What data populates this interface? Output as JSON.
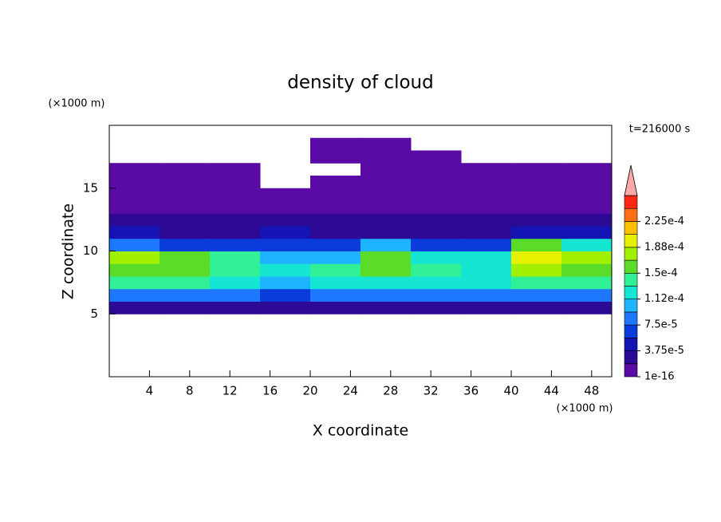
{
  "chart_data": {
    "type": "contour",
    "title": "density of cloud",
    "annotation": "t=216000 s",
    "x_label": "X coordinate",
    "y_label": "Z coordinate",
    "x_unit": "(×1000 m)",
    "y_unit": "(×1000 m)",
    "xlim": [
      0,
      50
    ],
    "ylim": [
      0,
      20
    ],
    "xticks": [
      4,
      8,
      12,
      16,
      20,
      24,
      28,
      32,
      36,
      40,
      44,
      48
    ],
    "yticks": [
      5,
      10,
      15
    ],
    "x_edges": [
      0,
      5,
      10,
      15,
      20,
      25,
      30,
      35,
      40,
      45,
      50
    ],
    "z_edges": [
      5,
      6,
      7,
      8,
      9,
      10,
      11,
      12,
      13,
      14,
      15,
      16,
      17,
      18,
      19
    ],
    "values": [
      [
        3e-05,
        3e-05,
        3e-05,
        3e-05,
        3e-05,
        3e-05,
        3e-05,
        3e-05,
        3e-05,
        3e-05
      ],
      [
        9e-05,
        9e-05,
        8e-05,
        7e-05,
        8e-05,
        9e-05,
        8e-05,
        8e-05,
        9e-05,
        9e-05
      ],
      [
        0.00014,
        0.000135,
        0.00012,
        0.00011,
        0.000125,
        0.00013,
        0.00012,
        0.000115,
        0.00014,
        0.000135
      ],
      [
        0.00016,
        0.00016,
        0.00014,
        0.00012,
        0.00014,
        0.00015,
        0.000145,
        0.00013,
        0.00017,
        0.00016
      ],
      [
        0.00017,
        0.000165,
        0.000135,
        0.00011,
        0.00011,
        0.000155,
        0.00012,
        0.00012,
        0.00019,
        0.000175
      ],
      [
        8e-05,
        7e-05,
        6e-05,
        7e-05,
        6e-05,
        0.00011,
        7e-05,
        6e-05,
        0.00016,
        0.00012
      ],
      [
        4e-05,
        3.5e-05,
        3.5e-05,
        4e-05,
        3e-05,
        3.5e-05,
        3.5e-05,
        3e-05,
        4e-05,
        4e-05
      ],
      [
        2.5e-05,
        2e-05,
        2e-05,
        2.5e-05,
        2e-05,
        2e-05,
        2e-05,
        2e-05,
        2.5e-05,
        2.5e-05
      ],
      [
        1.5e-05,
        1.5e-05,
        1.5e-05,
        1.5e-05,
        1.5e-05,
        1.5e-05,
        1.5e-05,
        1.5e-05,
        1.5e-05,
        1.5e-05
      ],
      [
        1e-05,
        1e-05,
        1e-05,
        1e-05,
        1e-05,
        1e-05,
        1e-05,
        1e-05,
        1e-05,
        1e-05
      ],
      [
        5e-06,
        5e-06,
        5e-06,
        null,
        5e-06,
        5e-06,
        5e-06,
        5e-06,
        5e-06,
        5e-06
      ],
      [
        5e-06,
        3e-06,
        3e-06,
        null,
        null,
        3e-06,
        3e-06,
        3e-06,
        3e-06,
        3e-06
      ],
      [
        null,
        null,
        null,
        null,
        1e-06,
        1e-06,
        1e-06,
        null,
        null,
        null
      ],
      [
        null,
        null,
        null,
        null,
        1e-06,
        1e-06,
        null,
        null,
        null,
        null
      ]
    ],
    "colorbar": {
      "levels": [
        1e-16,
        1.875e-05,
        3.75e-05,
        5.625e-05,
        7.5e-05,
        9.375e-05,
        0.0001125,
        0.00013125,
        0.00015,
        0.00016875,
        0.0001875,
        0.00020625,
        0.000225,
        0.00024375,
        0.0002625
      ],
      "colors": [
        "#5a0aa5",
        "#2d0a96",
        "#1414b4",
        "#0a3cdc",
        "#1e78ff",
        "#1eb4ff",
        "#14e6d2",
        "#32f096",
        "#5adc28",
        "#a0f000",
        "#e6f000",
        "#ffbe00",
        "#ff6e14",
        "#ff2814"
      ],
      "extend_color": "#ffa8a8",
      "ticks": [
        {
          "value": 1e-16,
          "label": "1e-16"
        },
        {
          "value": 3.75e-05,
          "label": "3.75e-5"
        },
        {
          "value": 7.5e-05,
          "label": "7.5e-5"
        },
        {
          "value": 0.0001125,
          "label": "1.12e-4"
        },
        {
          "value": 0.00015,
          "label": "1.5e-4"
        },
        {
          "value": 0.0001875,
          "label": "1.88e-4"
        },
        {
          "value": 0.000225,
          "label": "2.25e-4"
        }
      ]
    }
  }
}
